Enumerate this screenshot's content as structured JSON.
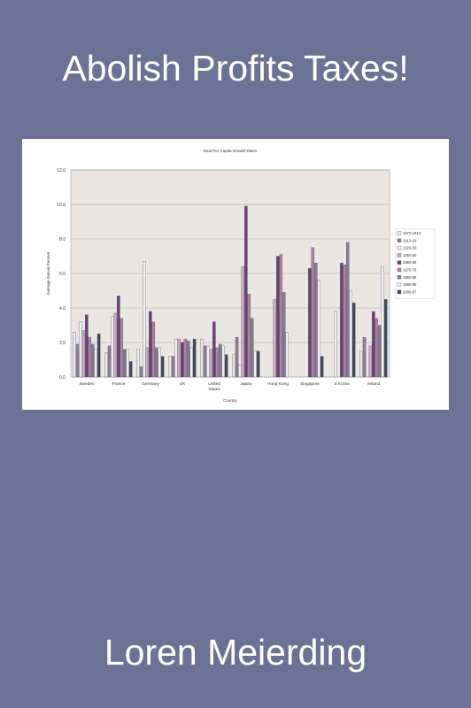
{
  "cover": {
    "title": "Abolish Profits Taxes!",
    "author": "Loren Meierding"
  },
  "chart_data": {
    "type": "bar",
    "title": "Real Per Capita Growth Rates",
    "xlabel": "Country",
    "ylabel": "Average Annual Percent",
    "ylim": [
      0,
      12
    ],
    "yticks": [
      "0.0",
      "2.0",
      "4.0",
      "6.0",
      "8.0",
      "10.0",
      "12.0"
    ],
    "grid": true,
    "legend_position": "right",
    "categories": [
      "Sweden",
      "France",
      "Germany",
      "UK",
      "United States",
      "Japan",
      "Hong Kong",
      "Singapore",
      "S Korea",
      "Ireland"
    ],
    "series": [
      {
        "name": "1870-1913",
        "color": "#e9e9ee",
        "values": [
          2.6,
          1.4,
          1.6,
          1.2,
          2.2,
          1.3,
          0,
          0,
          0,
          1.5
        ]
      },
      {
        "name": "1913-29",
        "color": "#8f7e96",
        "values": [
          1.9,
          1.8,
          0.6,
          1.2,
          1.8,
          2.3,
          0,
          0,
          0,
          2.3
        ]
      },
      {
        "name": "1929-50",
        "color": "#f1f1f4",
        "values": [
          3.2,
          3.5,
          6.7,
          2.2,
          1.8,
          0.7,
          0,
          0,
          3.8,
          0
        ]
      },
      {
        "name": "1950-60",
        "color": "#c9aac8",
        "values": [
          2.7,
          3.7,
          1.7,
          2.2,
          1.6,
          6.4,
          4.5,
          0,
          0,
          1.8
        ]
      },
      {
        "name": "1960-69",
        "color": "#6b3f74",
        "values": [
          3.6,
          4.7,
          3.8,
          2.0,
          3.2,
          9.9,
          7.0,
          6.3,
          6.6,
          3.8
        ]
      },
      {
        "name": "1970-79",
        "color": "#b07fa6",
        "values": [
          2.3,
          3.4,
          3.2,
          2.2,
          1.7,
          4.8,
          7.1,
          7.5,
          6.5,
          3.4
        ]
      },
      {
        "name": "1980-89",
        "color": "#8a7a9a",
        "values": [
          1.9,
          1.6,
          1.7,
          2.1,
          1.9,
          3.4,
          4.9,
          6.6,
          7.8,
          3.0
        ]
      },
      {
        "name": "1990-99",
        "color": "#f3f3f6",
        "values": [
          1.6,
          1.6,
          1.7,
          1.7,
          1.8,
          1.5,
          2.6,
          5.6,
          5.0,
          6.4
        ]
      },
      {
        "name": "2000-07",
        "color": "#3f4658",
        "values": [
          2.5,
          0.9,
          1.2,
          2.2,
          1.3,
          1.5,
          0,
          1.2,
          4.3,
          4.5
        ]
      }
    ]
  }
}
